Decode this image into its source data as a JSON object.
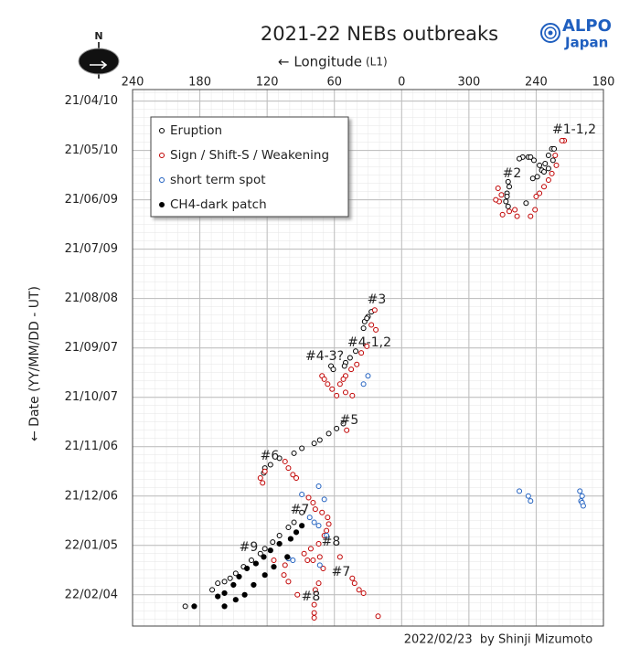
{
  "chart_data": {
    "type": "scatter",
    "title": "2021-22 NEBs outbreaks",
    "xlabel": "← Longitude",
    "xlabel_unit": "(L1)",
    "ylabel": "← Date (YY/MM/DD - UT)",
    "compass_label": "N",
    "logo": [
      "ALPO",
      "Japan"
    ],
    "footer": "2022/02/23  by Shinji Mizumoto",
    "xlim": [
      240,
      -180
    ],
    "ylim": [
      -7,
      319
    ],
    "y_reversed": true,
    "grid": true,
    "legend": "upper left",
    "xticks": [
      240,
      180,
      120,
      60,
      0,
      {
        "value": -60,
        "label": "300"
      },
      {
        "value": -120,
        "label": "240"
      },
      {
        "value": -180,
        "label": "180"
      }
    ],
    "yticks": [
      {
        "value": 0,
        "label": "21/04/10"
      },
      {
        "value": 30,
        "label": "21/05/10"
      },
      {
        "value": 60,
        "label": "21/06/09"
      },
      {
        "value": 90,
        "label": "21/07/09"
      },
      {
        "value": 120,
        "label": "21/08/08"
      },
      {
        "value": 150,
        "label": "21/09/07"
      },
      {
        "value": 180,
        "label": "21/10/07"
      },
      {
        "value": 210,
        "label": "21/11/06"
      },
      {
        "value": 240,
        "label": "21/12/06"
      },
      {
        "value": 270,
        "label": "22/01/05"
      },
      {
        "value": 300,
        "label": "22/02/04"
      }
    ],
    "series": [
      {
        "name": "Eruption",
        "color": "#000000",
        "marker": "open",
        "x": [
          -134,
          -136,
          -131,
          -135,
          -128,
          -131,
          -125,
          -127,
          -121,
          -123,
          -117,
          -113,
          -108,
          -115,
          -105,
          -118,
          -95,
          -96,
          -94,
          -94,
          -93,
          -95,
          -111,
          27,
          30,
          33,
          34,
          31,
          41,
          46,
          50,
          51,
          63,
          61,
          52,
          58,
          65,
          73,
          78,
          89,
          96,
          109,
          117,
          122,
          123,
          89,
          96,
          101,
          109,
          115,
          122,
          126,
          134,
          141,
          148,
          153,
          158,
          164,
          169,
          193
        ],
        "values": [
          29,
          29,
          33,
          36,
          38,
          41,
          42,
          43,
          46,
          39,
          47,
          34,
          34,
          34,
          35,
          36,
          49,
          52,
          56,
          58,
          61,
          64,
          62,
          128,
          131,
          134,
          138,
          132,
          152,
          156,
          159,
          161,
          161,
          163,
          196,
          199,
          202,
          206,
          208,
          211,
          214,
          217,
          221,
          223,
          226,
          250,
          256,
          259,
          264,
          268,
          272,
          275,
          279,
          283,
          287,
          290,
          292,
          293,
          297,
          307
        ]
      },
      {
        "name": "Sign / Shift-S / Weakening",
        "color": "#c00000",
        "marker": "open",
        "x": [
          -145,
          -143,
          -137,
          -138,
          -134,
          -131,
          -127,
          -123,
          -120,
          -119,
          -115,
          -103,
          -101,
          -96,
          -90,
          -87,
          -84,
          -89,
          -86,
          24,
          27,
          23,
          31,
          36,
          40,
          45,
          50,
          52,
          55,
          50,
          44,
          71,
          69,
          66,
          62,
          58,
          49,
          122,
          126,
          124,
          104,
          101,
          97,
          94,
          83,
          79,
          77,
          71,
          66,
          65,
          67,
          69,
          74,
          81,
          87,
          84,
          79,
          73,
          70,
          74,
          77,
          55,
          44,
          42,
          38,
          34,
          104,
          105,
          101,
          93,
          78,
          78,
          78,
          21,
          114
        ],
        "values": [
          24,
          24,
          33,
          39,
          44,
          48,
          52,
          56,
          58,
          66,
          70,
          70,
          66,
          67,
          69,
          61,
          60,
          57,
          53,
          127,
          136,
          139,
          149,
          153,
          160,
          163,
          167,
          169,
          172,
          177,
          179,
          167,
          169,
          172,
          175,
          179,
          200,
          225,
          229,
          232,
          219,
          223,
          227,
          229,
          241,
          244,
          248,
          250,
          253,
          257,
          261,
          264,
          269,
          272,
          275,
          279,
          279,
          277,
          284,
          293,
          297,
          277,
          290,
          293,
          297,
          299,
          282,
          288,
          292,
          300,
          306,
          311,
          314,
          313,
          279
        ]
      },
      {
        "name": "short term spot",
        "color": "#1f5fbf",
        "marker": "open",
        "x": [
          74,
          89,
          82,
          78,
          74,
          67,
          101,
          97,
          73,
          30,
          34,
          -105,
          -113,
          -115,
          -159,
          -161,
          -160,
          -161,
          -162,
          69
        ],
        "values": [
          234,
          239,
          253,
          256,
          258,
          264,
          278,
          279,
          282,
          167,
          172,
          237,
          240,
          243,
          237,
          240,
          243,
          244,
          246,
          242
        ]
      },
      {
        "name": "CH4-dark patch",
        "color": "#000000",
        "marker": "filled",
        "x": [
          89,
          94,
          99,
          109,
          117,
          123,
          130,
          138,
          145,
          150,
          158,
          164,
          148,
          158,
          185,
          122,
          132,
          140,
          114,
          102
        ],
        "values": [
          258,
          262,
          266,
          269,
          273,
          277,
          281,
          284,
          289,
          294,
          299,
          301,
          303,
          307,
          307,
          288,
          294,
          300,
          283,
          277
        ]
      }
    ],
    "annotations": [
      "#1-1,2",
      "#2",
      "#3",
      "#4-1,2",
      "#4-3?",
      "#5",
      "#6",
      "#7",
      "#8",
      "#9",
      "#7",
      "#8"
    ]
  }
}
